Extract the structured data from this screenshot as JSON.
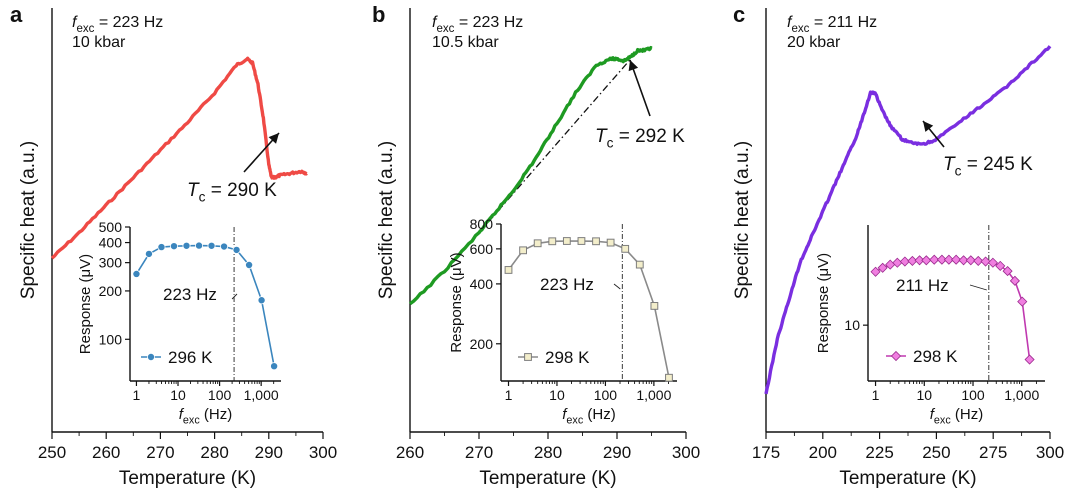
{
  "chart_data": [
    {
      "type": "line",
      "panel_label": "a",
      "xlabel": "Temperature (K)",
      "ylabel": "Specific heat (a.u.)",
      "xlim": [
        250,
        300
      ],
      "xticks": [
        "250",
        "260",
        "270",
        "280",
        "290",
        "300"
      ],
      "ylim": [
        0,
        1
      ],
      "y_ticks_shown": false,
      "color": "#ef4a45",
      "annotation_f_prefix": "f",
      "annotation_f_sub": "exc",
      "annotation_f_value": " = 223 Hz",
      "annotation_pressure": "10 kbar",
      "tc_symbol": "T",
      "tc_sub": "c",
      "tc_value": " = 290 K",
      "series": [
        {
          "name": "specific heat",
          "x": [
            250,
            255,
            260,
            265,
            270,
            275,
            280,
            284,
            286,
            287,
            288,
            289,
            290,
            290.5,
            291,
            292,
            294,
            296,
            297
          ],
          "y": [
            0.41,
            0.47,
            0.535,
            0.6,
            0.665,
            0.73,
            0.8,
            0.865,
            0.88,
            0.87,
            0.82,
            0.74,
            0.63,
            0.6,
            0.6,
            0.605,
            0.61,
            0.615,
            0.61
          ]
        }
      ],
      "inset": {
        "type": "line",
        "xlabel_prefix": "f",
        "xlabel_sub": "exc",
        "xlabel_suffix": " (Hz)",
        "ylabel": "Response (μV)",
        "xscale": "log",
        "yscale": "log",
        "xlim": [
          0.7,
          3000
        ],
        "ylim": [
          55,
          500
        ],
        "xticks": [
          {
            "v": 1,
            "label": "1"
          },
          {
            "v": 10,
            "label": "10"
          },
          {
            "v": 100,
            "label": "100"
          },
          {
            "v": 1000,
            "label": "1,000"
          }
        ],
        "yticks": [
          {
            "v": 100,
            "label": "100"
          },
          {
            "v": 200,
            "label": "200"
          },
          {
            "v": 300,
            "label": "300"
          },
          {
            "v": 400,
            "label": "400"
          },
          {
            "v": 500,
            "label": "500"
          }
        ],
        "vline_label": "223 Hz",
        "vline_x": 223,
        "marker": "circle",
        "color": "#3b86be",
        "legend_label": "296 K",
        "x": [
          1,
          2,
          4,
          8,
          16,
          32,
          64,
          128,
          256,
          512,
          1024,
          2048
        ],
        "y": [
          255,
          340,
          375,
          380,
          382,
          383,
          382,
          378,
          360,
          290,
          175,
          68
        ]
      }
    },
    {
      "type": "line",
      "panel_label": "b",
      "xlabel": "Temperature (K)",
      "ylabel": "Specific heat (a.u.)",
      "xlim": [
        260,
        300
      ],
      "xticks": [
        "260",
        "270",
        "280",
        "290",
        "300"
      ],
      "ylim": [
        0,
        1
      ],
      "y_ticks_shown": false,
      "color": "#1e9a22",
      "annotation_f_prefix": "f",
      "annotation_f_sub": "exc",
      "annotation_f_value": " = 223 Hz",
      "annotation_pressure": "10.5 kbar",
      "tc_symbol": "T",
      "tc_sub": "c",
      "tc_value": " = 292 K",
      "series": [
        {
          "name": "specific heat",
          "x": [
            260,
            265,
            270,
            272,
            275,
            278,
            281,
            284,
            287,
            289,
            290,
            291,
            292,
            293,
            294,
            295
          ],
          "y": [
            0.3,
            0.38,
            0.47,
            0.51,
            0.57,
            0.64,
            0.72,
            0.8,
            0.865,
            0.88,
            0.88,
            0.875,
            0.885,
            0.9,
            0.9,
            0.905
          ]
        }
      ],
      "baseline": {
        "x": [
          270,
          292
        ],
        "y": [
          0.47,
          0.88
        ]
      },
      "inset": {
        "type": "line",
        "xlabel_prefix": "f",
        "xlabel_sub": "exc",
        "xlabel_suffix": " (Hz)",
        "ylabel": "Response (μV)",
        "xscale": "log",
        "yscale": "log",
        "xlim": [
          0.7,
          3000
        ],
        "ylim": [
          130,
          800
        ],
        "xticks": [
          {
            "v": 1,
            "label": "1"
          },
          {
            "v": 10,
            "label": "10"
          },
          {
            "v": 100,
            "label": "100"
          },
          {
            "v": 1000,
            "label": "1,000"
          }
        ],
        "yticks": [
          {
            "v": 200,
            "label": "200"
          },
          {
            "v": 400,
            "label": "400"
          },
          {
            "v": 600,
            "label": "600"
          },
          {
            "v": 800,
            "label": "800"
          }
        ],
        "vline_label": "223 Hz",
        "vline_x": 223,
        "marker": "square",
        "color": "#8a8a8a",
        "legend_label": "298 K",
        "x": [
          1,
          2,
          4,
          8,
          16,
          32,
          64,
          128,
          256,
          512,
          1024,
          2048
        ],
        "y": [
          470,
          590,
          640,
          655,
          657,
          657,
          655,
          645,
          600,
          500,
          310,
          135
        ]
      }
    },
    {
      "type": "line",
      "panel_label": "c",
      "xlabel": "Temperature (K)",
      "ylabel": "Specific heat (a.u.)",
      "xlim": [
        175,
        300
      ],
      "xticks": [
        "175",
        "200",
        "225",
        "250",
        "275",
        "300"
      ],
      "ylim": [
        0,
        1
      ],
      "y_ticks_shown": false,
      "color": "#7a2ee0",
      "annotation_f_prefix": "f",
      "annotation_f_sub": "exc",
      "annotation_f_value": " = 211 Hz",
      "annotation_pressure": "20 kbar",
      "tc_symbol": "T",
      "tc_sub": "c",
      "tc_value": " = 245 K",
      "series": [
        {
          "name": "specific heat",
          "x": [
            175,
            180,
            185,
            190,
            195,
            200,
            205,
            210,
            215,
            218,
            221,
            223,
            226,
            230,
            235,
            240,
            245,
            250,
            260,
            270,
            280,
            290,
            300
          ],
          "y": [
            0.09,
            0.22,
            0.31,
            0.4,
            0.46,
            0.52,
            0.58,
            0.64,
            0.7,
            0.75,
            0.8,
            0.8,
            0.76,
            0.72,
            0.69,
            0.68,
            0.68,
            0.69,
            0.73,
            0.77,
            0.81,
            0.86,
            0.91
          ]
        }
      ],
      "inset": {
        "type": "line",
        "xlabel_prefix": "f",
        "xlabel_sub": "exc",
        "xlabel_suffix": " (Hz)",
        "ylabel": "Response (μV)",
        "xscale": "log",
        "yscale": "log",
        "xlim": [
          0.7,
          3000
        ],
        "ylim": [
          6,
          25
        ],
        "xticks": [
          {
            "v": 1,
            "label": "1"
          },
          {
            "v": 10,
            "label": "10"
          },
          {
            "v": 100,
            "label": "100"
          },
          {
            "v": 1000,
            "label": "1,000"
          }
        ],
        "yticks": [
          {
            "v": 10,
            "label": "10"
          }
        ],
        "vline_label": "211 Hz",
        "vline_x": 211,
        "marker": "diamond",
        "color": "#c039b0",
        "legend_label": "298 K",
        "x": [
          1,
          1.4,
          2,
          2.8,
          4,
          5.7,
          8,
          11,
          16,
          23,
          32,
          45,
          64,
          90,
          128,
          181,
          256,
          362,
          512,
          724,
          1024,
          1448
        ],
        "y": [
          16.3,
          16.9,
          17.4,
          17.7,
          17.9,
          18.0,
          18.1,
          18.1,
          18.2,
          18.2,
          18.2,
          18.2,
          18.1,
          18.1,
          18.0,
          17.9,
          17.7,
          17.2,
          16.4,
          15.0,
          12.4,
          7.3
        ]
      }
    }
  ]
}
